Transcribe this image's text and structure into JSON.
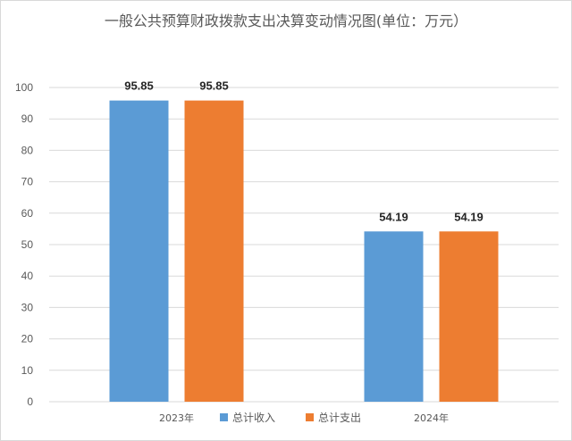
{
  "chart_data": {
    "type": "bar",
    "title": "一般公共预算财政拨款支出决算变动情况图(单位：万元）",
    "categories": [
      "2023年",
      "2024年"
    ],
    "series": [
      {
        "name": "总计收入",
        "values": [
          95.85,
          54.19
        ],
        "color": "#5b9bd5"
      },
      {
        "name": "总计支出",
        "values": [
          95.85,
          54.19
        ],
        "color": "#ed7d31"
      }
    ],
    "data_labels": [
      [
        "95.85",
        "54.19"
      ],
      [
        "95.85",
        "54.19"
      ]
    ],
    "ylim": [
      0,
      100
    ],
    "yticks": [
      0,
      10,
      20,
      30,
      40,
      50,
      60,
      70,
      80,
      90,
      100
    ],
    "xlabel": "",
    "ylabel": "",
    "grid": true,
    "legend_position": "bottom"
  }
}
